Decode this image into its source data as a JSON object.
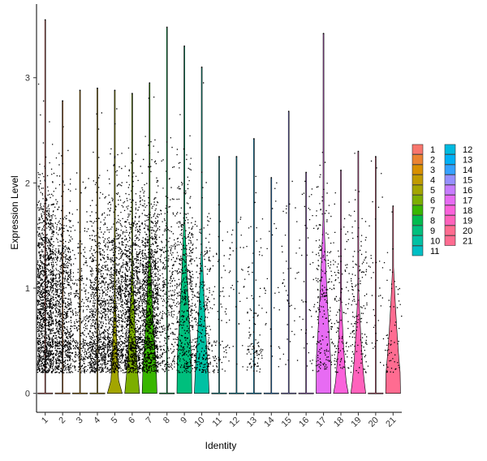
{
  "chart_data": {
    "type": "violin",
    "xlabel": "Identity",
    "ylabel": "Expression Level",
    "ylim": [
      -0.18,
      3.7
    ],
    "yticks": [
      0,
      1,
      2,
      3
    ],
    "categories": [
      "1",
      "2",
      "3",
      "4",
      "5",
      "6",
      "7",
      "8",
      "9",
      "10",
      "11",
      "12",
      "13",
      "14",
      "15",
      "16",
      "17",
      "18",
      "19",
      "20",
      "21"
    ],
    "colors": [
      "#F8766D",
      "#EA8331",
      "#D89000",
      "#C09B00",
      "#A3A500",
      "#7CAE00",
      "#39B600",
      "#00BB4E",
      "#00BF7D",
      "#00C1A3",
      "#00BFC4",
      "#00BAE0",
      "#00B0F6",
      "#35A2FF",
      "#9590FF",
      "#C77CFF",
      "#E76BF3",
      "#FA62DB",
      "#FF62BC",
      "#FF6C91",
      "#FF6C91"
    ],
    "series": [
      {
        "name": "1",
        "max": 3.55,
        "violin_bottom_width": 0.0,
        "violin_peak": 0.0,
        "dot_density": 1400,
        "dot_center": 0.85
      },
      {
        "name": "2",
        "max": 2.78,
        "violin_bottom_width": 0.0,
        "violin_peak": 0.0,
        "dot_density": 900,
        "dot_center": 0.75
      },
      {
        "name": "3",
        "max": 2.88,
        "violin_bottom_width": 0.0,
        "violin_peak": 0.0,
        "dot_density": 350,
        "dot_center": 0.6
      },
      {
        "name": "4",
        "max": 2.9,
        "violin_bottom_width": 0.0,
        "violin_peak": 0.0,
        "dot_density": 800,
        "dot_center": 0.7
      },
      {
        "name": "5",
        "max": 2.88,
        "violin_bottom_width": 0.5,
        "violin_peak": 0.12,
        "dot_density": 900,
        "dot_center": 0.75
      },
      {
        "name": "6",
        "max": 2.85,
        "violin_bottom_width": 0.7,
        "violin_peak": 0.2,
        "dot_density": 1100,
        "dot_center": 0.8
      },
      {
        "name": "7",
        "max": 2.95,
        "violin_bottom_width": 0.85,
        "violin_peak": 0.25,
        "dot_density": 1200,
        "dot_center": 0.85
      },
      {
        "name": "8",
        "max": 3.48,
        "violin_bottom_width": 0.0,
        "violin_peak": 0.0,
        "dot_density": 350,
        "dot_center": 0.9
      },
      {
        "name": "9",
        "max": 3.3,
        "violin_bottom_width": 0.9,
        "violin_peak": 0.35,
        "dot_density": 500,
        "dot_center": 0.9
      },
      {
        "name": "10",
        "max": 3.1,
        "violin_bottom_width": 0.8,
        "violin_peak": 0.25,
        "dot_density": 300,
        "dot_center": 0.6
      },
      {
        "name": "11",
        "max": 2.25,
        "violin_bottom_width": 0.0,
        "violin_peak": 0.0,
        "dot_density": 80,
        "dot_center": 0.6
      },
      {
        "name": "12",
        "max": 2.25,
        "violin_bottom_width": 0.0,
        "violin_peak": 0.0,
        "dot_density": 40,
        "dot_center": 1.0
      },
      {
        "name": "13",
        "max": 2.42,
        "violin_bottom_width": 0.0,
        "violin_peak": 0.0,
        "dot_density": 110,
        "dot_center": 0.6
      },
      {
        "name": "14",
        "max": 2.05,
        "violin_bottom_width": 0.0,
        "violin_peak": 0.0,
        "dot_density": 30,
        "dot_center": 1.0
      },
      {
        "name": "15",
        "max": 2.68,
        "violin_bottom_width": 0.0,
        "violin_peak": 0.0,
        "dot_density": 40,
        "dot_center": 1.0
      },
      {
        "name": "16",
        "max": 2.1,
        "violin_bottom_width": 0.0,
        "violin_peak": 0.0,
        "dot_density": 50,
        "dot_center": 1.0
      },
      {
        "name": "17",
        "max": 3.42,
        "violin_bottom_width": 0.9,
        "violin_peak": 0.35,
        "dot_density": 220,
        "dot_center": 0.9
      },
      {
        "name": "18",
        "max": 2.12,
        "violin_bottom_width": 0.7,
        "violin_peak": 0.1,
        "dot_density": 130,
        "dot_center": 0.7
      },
      {
        "name": "19",
        "max": 2.3,
        "violin_bottom_width": 0.75,
        "violin_peak": 0.12,
        "dot_density": 150,
        "dot_center": 0.75
      },
      {
        "name": "20",
        "max": 2.25,
        "violin_bottom_width": 0.0,
        "violin_peak": 0.0,
        "dot_density": 40,
        "dot_center": 1.0
      },
      {
        "name": "21",
        "max": 1.78,
        "violin_bottom_width": 0.9,
        "violin_peak": 0.2,
        "dot_density": 60,
        "dot_center": 0.6
      }
    ],
    "legend": {
      "placement": "right",
      "columns": 2
    }
  }
}
